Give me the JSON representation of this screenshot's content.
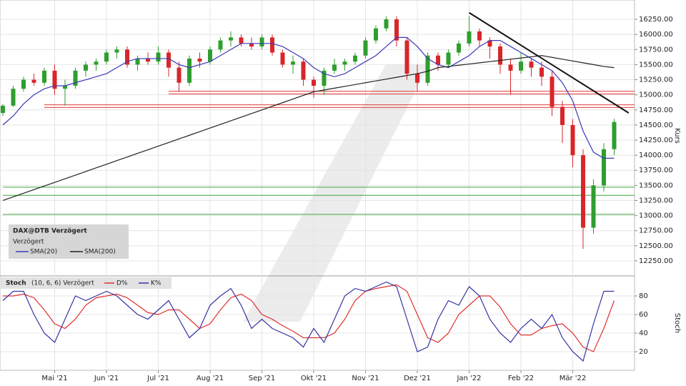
{
  "chart_data": [
    {
      "type": "candlestick",
      "title": "DAX@DTB Verzögert",
      "subtitle": "Verzögert",
      "ylabel": "Kurs",
      "categories": [
        null,
        null,
        null,
        null,
        null,
        "Mai '21",
        null,
        null,
        null,
        null,
        "Jun '21",
        null,
        null,
        null,
        null,
        "Jul '21",
        null,
        null,
        null,
        null,
        "Aug '21",
        null,
        null,
        null,
        null,
        "Sep '21",
        null,
        null,
        null,
        null,
        "Okt '21",
        null,
        null,
        null,
        null,
        "Nov '21",
        null,
        null,
        null,
        null,
        "Dez '21",
        null,
        null,
        null,
        null,
        "Jan '22",
        null,
        null,
        null,
        null,
        "Feb '22",
        null,
        null,
        null,
        null,
        "Mär '22",
        null,
        null,
        null,
        null
      ],
      "open": [
        14700,
        14820,
        15100,
        15250,
        15200,
        15400,
        15100,
        15150,
        15400,
        15500,
        15550,
        15700,
        15750,
        15500,
        15600,
        15550,
        15700,
        15450,
        15200,
        15600,
        15550,
        15750,
        15900,
        15950,
        15850,
        15800,
        15950,
        15700,
        15500,
        15550,
        15250,
        15150,
        15400,
        15500,
        15550,
        15650,
        15900,
        16100,
        16250,
        15900,
        15350,
        15200,
        15650,
        15500,
        15700,
        15850,
        16050,
        15900,
        15800,
        15500,
        15400,
        15550,
        15450,
        15300,
        14800,
        14500,
        14000,
        12800,
        13500,
        14100
      ],
      "high": [
        14850,
        15150,
        15300,
        15350,
        15450,
        15500,
        15250,
        15450,
        15550,
        15600,
        15750,
        15800,
        15800,
        15650,
        15700,
        15800,
        15750,
        15550,
        15650,
        15700,
        15800,
        15950,
        16050,
        16000,
        15950,
        16000,
        16000,
        15750,
        15650,
        15600,
        15300,
        15450,
        15600,
        15600,
        15700,
        15950,
        16150,
        16300,
        16300,
        15950,
        15500,
        15700,
        15700,
        15750,
        15900,
        16300,
        16100,
        15950,
        15850,
        15600,
        15700,
        15600,
        15550,
        15400,
        14900,
        14600,
        14100,
        13600,
        14200,
        14600
      ],
      "low": [
        14650,
        14800,
        15050,
        15150,
        15150,
        15000,
        14820,
        15100,
        15300,
        15400,
        15500,
        15600,
        15450,
        15400,
        15500,
        15500,
        15300,
        15050,
        15150,
        15450,
        15500,
        15700,
        15800,
        15800,
        15750,
        15750,
        15650,
        15450,
        15350,
        15150,
        14950,
        15000,
        15350,
        15400,
        15500,
        15600,
        15850,
        16050,
        15800,
        15250,
        15050,
        15150,
        15400,
        15450,
        15650,
        15800,
        15800,
        15600,
        15350,
        15000,
        15350,
        15300,
        15150,
        14650,
        14200,
        13800,
        12450,
        12700,
        13400,
        14000
      ],
      "close": [
        14820,
        15100,
        15250,
        15200,
        15400,
        15100,
        15150,
        15400,
        15500,
        15550,
        15700,
        15750,
        15500,
        15600,
        15550,
        15700,
        15450,
        15200,
        15600,
        15550,
        15750,
        15900,
        15950,
        15850,
        15800,
        15950,
        15700,
        15500,
        15550,
        15250,
        15150,
        15400,
        15500,
        15550,
        15650,
        15900,
        16100,
        16250,
        15900,
        15350,
        15200,
        15650,
        15500,
        15700,
        15850,
        16050,
        15900,
        15800,
        15500,
        15400,
        15550,
        15450,
        15300,
        14800,
        14500,
        14000,
        12800,
        13500,
        14100,
        14550
      ],
      "up_color": "#2e9e2e",
      "down_color": "#d8262b",
      "series": [
        {
          "name": "SMA(20)",
          "color": "#3a3ab8",
          "values": [
            14500,
            14650,
            14850,
            15000,
            15100,
            15150,
            15150,
            15200,
            15250,
            15300,
            15350,
            15450,
            15550,
            15600,
            15600,
            15600,
            15600,
            15500,
            15450,
            15500,
            15550,
            15650,
            15750,
            15850,
            15850,
            15850,
            15850,
            15800,
            15700,
            15600,
            15450,
            15350,
            15300,
            15350,
            15450,
            15550,
            15650,
            15800,
            15950,
            15950,
            15800,
            15600,
            15500,
            15450,
            15550,
            15650,
            15800,
            15900,
            15900,
            15800,
            15700,
            15600,
            15500,
            15400,
            15200,
            14900,
            14400,
            14050,
            13950,
            13950
          ]
        },
        {
          "name": "SMA(200)",
          "color": "#222222",
          "values": [
            13250,
            13310,
            13370,
            13430,
            13490,
            13550,
            13610,
            13670,
            13730,
            13790,
            13850,
            13910,
            13970,
            14030,
            14090,
            14150,
            14210,
            14270,
            14330,
            14390,
            14450,
            14510,
            14570,
            14630,
            14690,
            14750,
            14810,
            14870,
            14930,
            14990,
            15050,
            15080,
            15110,
            15140,
            15170,
            15200,
            15230,
            15260,
            15290,
            15320,
            15350,
            15390,
            15450,
            15470,
            15490,
            15510,
            15530,
            15550,
            15570,
            15590,
            15610,
            15630,
            15650,
            15620,
            15590,
            15560,
            15530,
            15500,
            15470,
            15450
          ]
        }
      ],
      "levels": [
        {
          "value": 15060,
          "color": "#e23a3a",
          "start": 16
        },
        {
          "value": 15015,
          "color": "#e23a3a",
          "start": 16
        },
        {
          "value": 14835,
          "color": "#e23a3a",
          "start": 4
        },
        {
          "value": 14790,
          "color": "#e23a3a",
          "start": 4
        },
        {
          "value": 13470,
          "color": "#3aa83a",
          "start": 0
        },
        {
          "value": 13335,
          "color": "#3aa83a",
          "start": 0
        },
        {
          "value": 13020,
          "color": "#3aa83a",
          "start": 0
        }
      ],
      "trendline": {
        "color": "#111111",
        "from": [
          45,
          16360
        ],
        "to": [
          60.4,
          14700
        ]
      },
      "ylim": [
        12013,
        16570
      ],
      "yticks": [
        {
          "value": 12250,
          "label": "12250.00"
        },
        {
          "value": 12500,
          "label": "12500.00"
        },
        {
          "value": 12750,
          "label": "12750.00"
        },
        {
          "value": 13000,
          "label": "13000.00"
        },
        {
          "value": 13250,
          "label": "13250.00"
        },
        {
          "value": 13500,
          "label": "13500.00"
        },
        {
          "value": 13750,
          "label": "13750.00"
        },
        {
          "value": 14000,
          "label": "14000.00"
        },
        {
          "value": 14250,
          "label": "14250.00"
        },
        {
          "value": 14500,
          "label": "14500.00"
        },
        {
          "value": 14750,
          "label": "14750.00"
        },
        {
          "value": 15000,
          "label": "15000.00"
        },
        {
          "value": 15250,
          "label": "15250.00"
        },
        {
          "value": 15500,
          "label": "15500.00"
        },
        {
          "value": 15750,
          "label": "15750.00"
        },
        {
          "value": 16000,
          "label": "16000.00"
        },
        {
          "value": 16250,
          "label": "16250.00"
        }
      ],
      "grid": true
    },
    {
      "type": "line",
      "title": "Stoch",
      "subtitle": "(10, 6, 6) Verzögert",
      "ylabel": "Stoch",
      "series": [
        {
          "name": "D%",
          "color": "#e03030",
          "values": [
            80,
            80,
            82,
            78,
            65,
            50,
            45,
            55,
            70,
            78,
            80,
            82,
            78,
            70,
            62,
            60,
            65,
            65,
            55,
            45,
            50,
            65,
            78,
            82,
            75,
            60,
            55,
            48,
            42,
            35,
            35,
            35,
            40,
            55,
            75,
            85,
            88,
            90,
            92,
            85,
            60,
            35,
            30,
            40,
            60,
            70,
            80,
            80,
            68,
            50,
            38,
            38,
            45,
            48,
            50,
            40,
            25,
            20,
            45,
            75
          ]
        },
        {
          "name": "K%",
          "color": "#3434a4",
          "values": [
            75,
            85,
            85,
            60,
            40,
            30,
            55,
            80,
            75,
            80,
            85,
            80,
            70,
            60,
            55,
            65,
            75,
            55,
            35,
            45,
            70,
            80,
            88,
            70,
            45,
            55,
            45,
            40,
            35,
            25,
            45,
            30,
            55,
            80,
            88,
            85,
            90,
            95,
            90,
            55,
            20,
            25,
            55,
            75,
            70,
            90,
            80,
            55,
            40,
            30,
            45,
            55,
            45,
            60,
            35,
            20,
            10,
            50,
            85,
            85
          ]
        }
      ],
      "ylim": [
        0,
        100
      ],
      "yticks": [
        20,
        40,
        60,
        80
      ],
      "grid": true
    }
  ]
}
